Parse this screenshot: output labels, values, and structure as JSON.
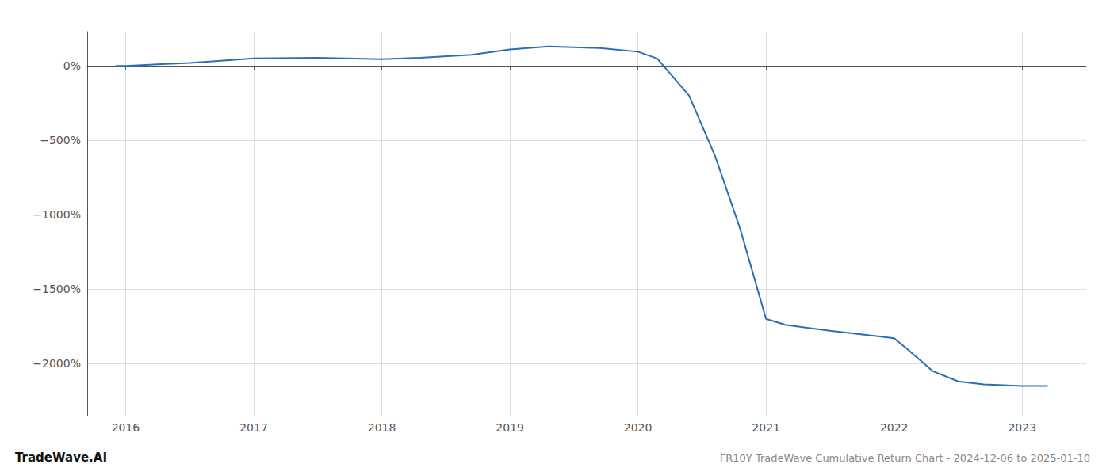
{
  "chart_data": {
    "type": "line",
    "title": "FR10Y TradeWave Cumulative Return Chart - 2024-12-06 to 2025-01-10",
    "annotations": [
      "TradeWave.AI"
    ],
    "x": [
      2015.92,
      2016.0,
      2016.25,
      2016.5,
      2017.0,
      2017.5,
      2018.0,
      2018.3,
      2018.7,
      2019.0,
      2019.3,
      2019.7,
      2020.0,
      2020.15,
      2020.4,
      2020.6,
      2020.8,
      2021.0,
      2021.15,
      2021.5,
      2021.7,
      2021.9,
      2022.0,
      2022.1,
      2022.3,
      2022.5,
      2022.7,
      2023.0,
      2023.2
    ],
    "values": [
      0,
      0,
      10,
      20,
      50,
      55,
      45,
      55,
      75,
      110,
      130,
      120,
      95,
      50,
      -200,
      -600,
      -1100,
      -1700,
      -1740,
      -1780,
      -1800,
      -1820,
      -1830,
      -1900,
      -2050,
      -2120,
      -2140,
      -2150,
      -2150
    ],
    "color": "#2a6eb5",
    "xlim": [
      2015.7,
      2023.5
    ],
    "ylim": [
      -2350,
      230
    ],
    "xticks": [
      2016,
      2017,
      2018,
      2019,
      2020,
      2021,
      2022,
      2023
    ],
    "yticks": [
      {
        "value": 0,
        "label": "0%"
      },
      {
        "value": -500,
        "label": "−500%"
      },
      {
        "value": -1000,
        "label": "−1000%"
      },
      {
        "value": -1500,
        "label": "−1500%"
      },
      {
        "value": -2000,
        "label": "−2000%"
      }
    ],
    "grid": true
  }
}
